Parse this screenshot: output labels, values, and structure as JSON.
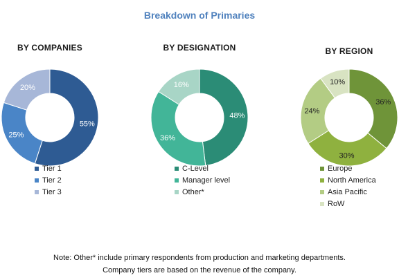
{
  "title": "Breakdown of Primaries",
  "chart_data": [
    {
      "type": "pie",
      "title": "BY COMPANIES",
      "categories": [
        "Tier 1",
        "Tier 2",
        "Tier 3"
      ],
      "values": [
        55,
        25,
        20
      ],
      "labels": [
        "55%",
        "25%",
        "20%"
      ],
      "colors": [
        "#2e5b93",
        "#4a85c7",
        "#a7b7d8"
      ],
      "label_colors": [
        "#ffffff",
        "#ffffff",
        "#ffffff"
      ],
      "legend_position": "bottom"
    },
    {
      "type": "pie",
      "title": "BY DESIGNATION",
      "categories": [
        "C-Level",
        "Manager level",
        "Other*"
      ],
      "values": [
        48,
        36,
        16
      ],
      "labels": [
        "48%",
        "36%",
        "16%"
      ],
      "colors": [
        "#2b8c76",
        "#42b598",
        "#a8d5c6"
      ],
      "label_colors": [
        "#ffffff",
        "#ffffff",
        "#ffffff"
      ],
      "legend_position": "bottom"
    },
    {
      "type": "pie",
      "title": "BY REGION",
      "categories": [
        "Europe",
        "North America",
        "Asia Pacific",
        "RoW"
      ],
      "values": [
        36,
        30,
        24,
        10
      ],
      "labels": [
        "36%",
        "30%",
        "24%",
        "10%"
      ],
      "colors": [
        "#6f9439",
        "#8fb13f",
        "#b3cc84",
        "#d8e3c2"
      ],
      "label_colors": [
        "#222222",
        "#222222",
        "#222222",
        "#222222"
      ],
      "legend_position": "bottom"
    }
  ],
  "note": {
    "line1": "Note: Other* include primary respondents from production and marketing departments.",
    "line2": "Company tiers are based on the revenue of the company."
  }
}
